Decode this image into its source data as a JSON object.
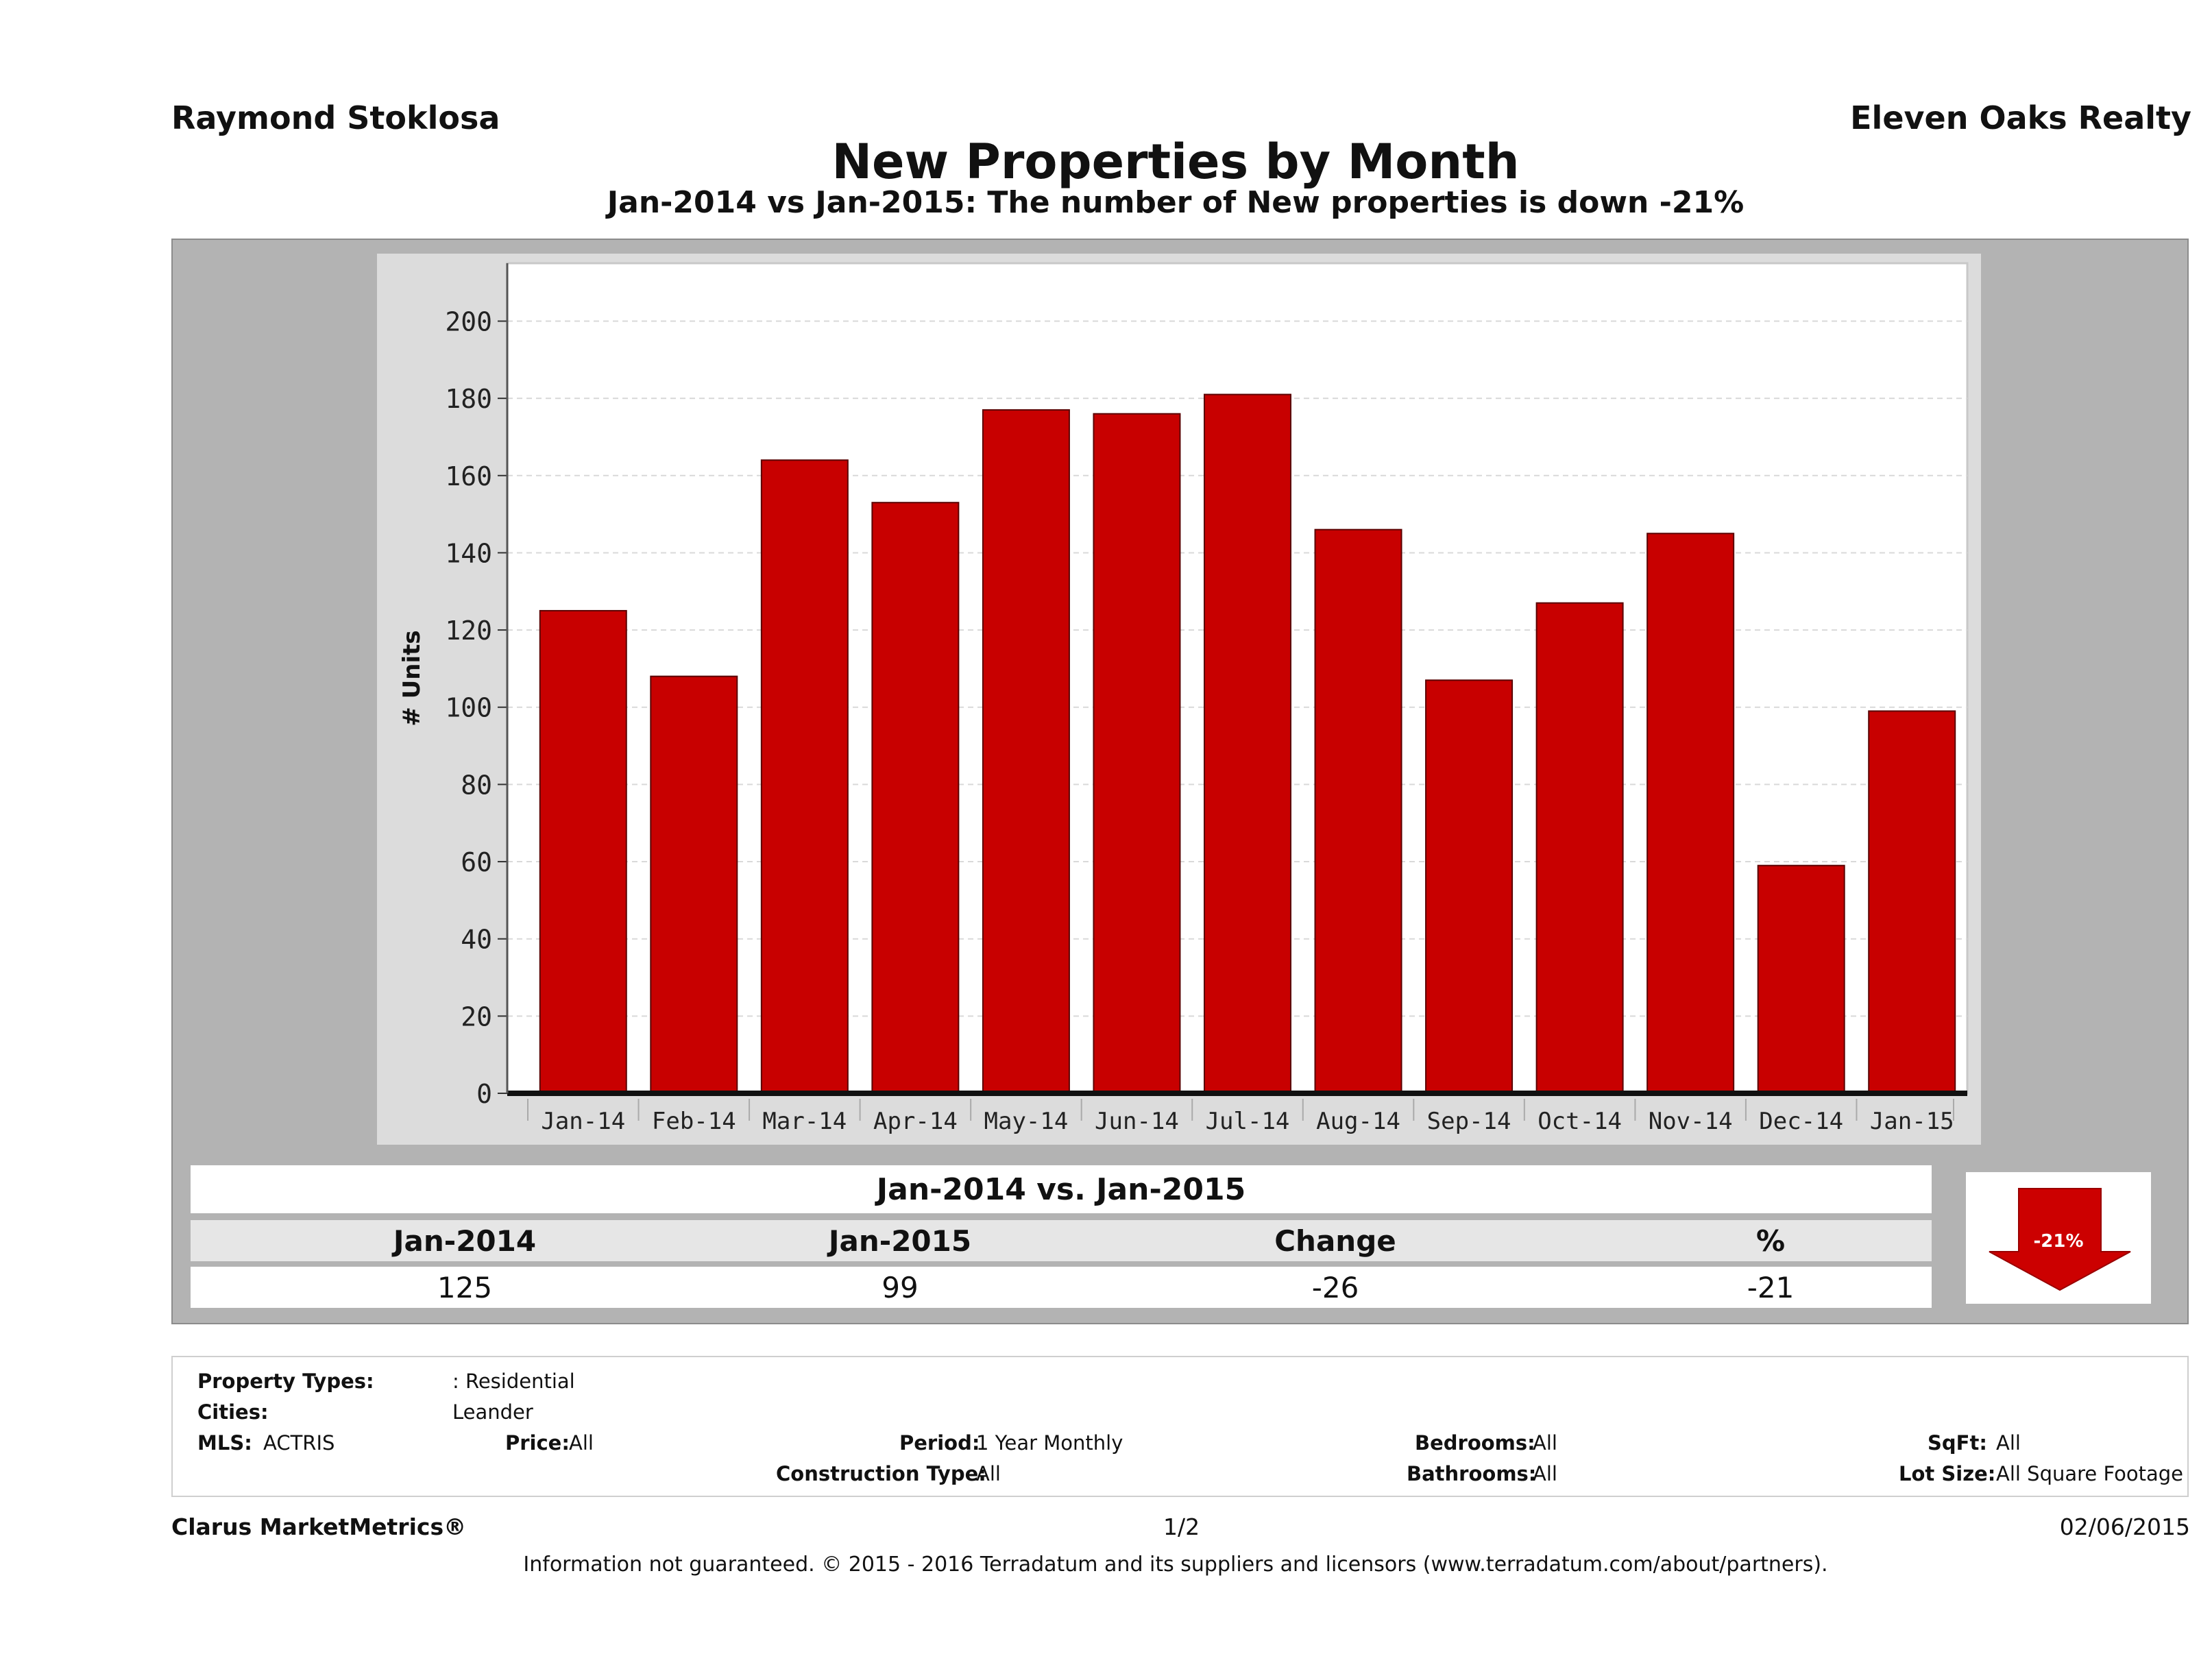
{
  "header": {
    "agent": "Raymond Stoklosa",
    "company": "Eleven Oaks Realty",
    "title": "New Properties by Month",
    "subtitle": "Jan-2014 vs Jan-2015: The number of New  properties is down -21%"
  },
  "chart_data": {
    "type": "bar",
    "categories": [
      "Jan-14",
      "Feb-14",
      "Mar-14",
      "Apr-14",
      "May-14",
      "Jun-14",
      "Jul-14",
      "Aug-14",
      "Sep-14",
      "Oct-14",
      "Nov-14",
      "Dec-14",
      "Jan-15"
    ],
    "values": [
      125,
      108,
      164,
      153,
      177,
      176,
      181,
      146,
      107,
      127,
      145,
      59,
      99
    ],
    "ylabel": "# Units",
    "ylim": [
      0,
      215
    ],
    "yticks": [
      0,
      20,
      40,
      60,
      80,
      100,
      120,
      140,
      160,
      180,
      200
    ],
    "bar_color": "#c80000",
    "grid": true
  },
  "comparison": {
    "title": "Jan-2014 vs. Jan-2015",
    "headers": [
      "Jan-2014",
      "Jan-2015",
      "Change",
      "%"
    ],
    "values": [
      "125",
      "99",
      "-26",
      "-21"
    ],
    "indicator": "-21%",
    "indicator_color": "#cc0000"
  },
  "criteria": {
    "property_types_label": "Property Types:",
    "property_types_value": ": Residential",
    "cities_label": "Cities:",
    "cities_value": "Leander",
    "mls_label": "MLS:",
    "mls_value": "ACTRIS",
    "price_label": "Price:",
    "price_value": "All",
    "period_label": "Period:",
    "period_value": "1 Year Monthly",
    "construction_label": "Construction Type:",
    "construction_value": "All",
    "bedrooms_label": "Bedrooms:",
    "bedrooms_value": "All",
    "bathrooms_label": "Bathrooms:",
    "bathrooms_value": "All",
    "sqft_label": "SqFt:",
    "sqft_value": "All",
    "lotsize_label": "Lot Size:",
    "lotsize_value": "All Square Footage"
  },
  "footer": {
    "brand": "Clarus MarketMetrics®",
    "page": "1/2",
    "date": "02/06/2015",
    "disclaimer": "Information not guaranteed. © 2015 - 2016 Terradatum and its suppliers and licensors (www.terradatum.com/about/partners)."
  }
}
